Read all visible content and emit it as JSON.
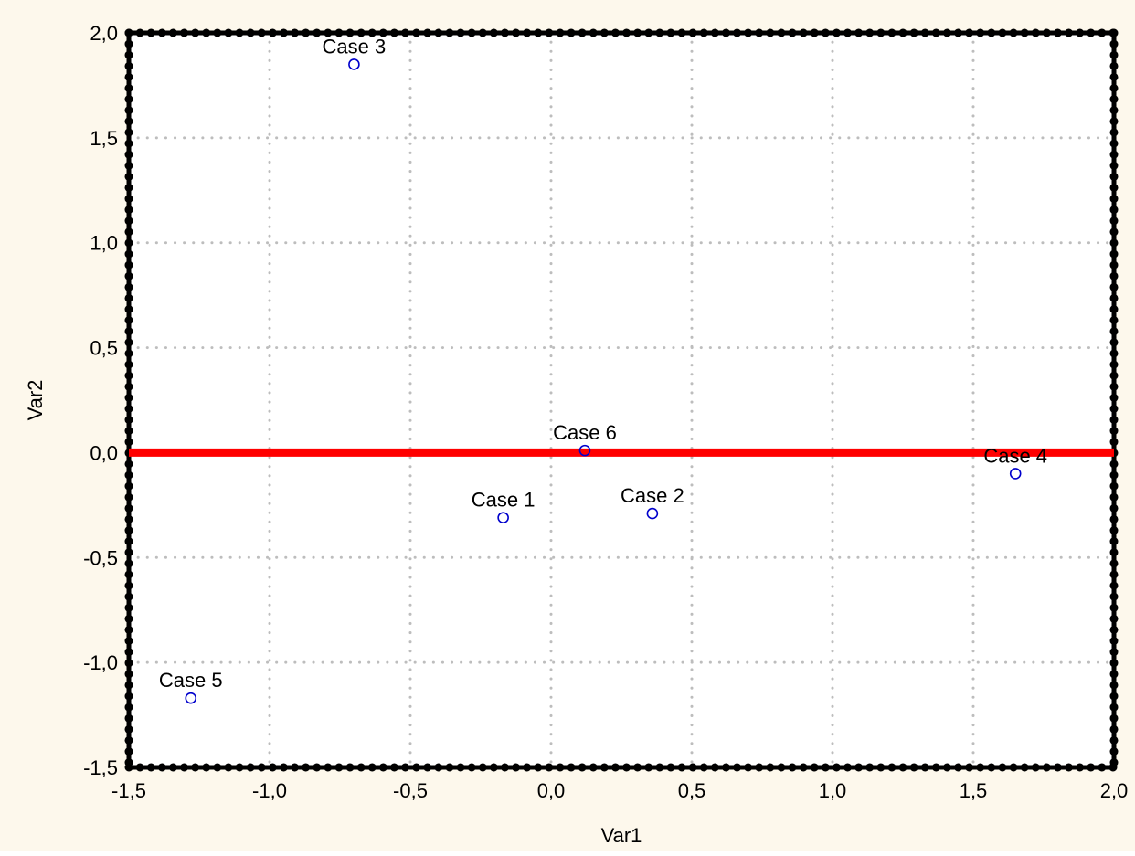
{
  "chart_data": {
    "type": "scatter",
    "title": "",
    "xlabel": "Var1",
    "ylabel": "Var2",
    "xlim": [
      -1.5,
      2.0
    ],
    "ylim": [
      -1.5,
      2.0
    ],
    "x_ticks": [
      -1.5,
      -1.0,
      -0.5,
      0.0,
      0.5,
      1.0,
      1.5,
      2.0
    ],
    "y_ticks": [
      -1.5,
      -1.0,
      -0.5,
      0.0,
      0.5,
      1.0,
      1.5,
      2.0
    ],
    "x_tick_labels": [
      "-1,5",
      "-1,0",
      "-0,5",
      "0,0",
      "0,5",
      "1,0",
      "1,5",
      "2,0"
    ],
    "y_tick_labels": [
      "-1,5",
      "-1,0",
      "-0,5",
      "0,0",
      "0,5",
      "1,0",
      "1,5",
      "2,0"
    ],
    "grid": true,
    "reference_line": {
      "axis": "y",
      "value": 0.0,
      "color": "#ff0000"
    },
    "points": [
      {
        "label": "Case 1",
        "x": -0.17,
        "y": -0.31
      },
      {
        "label": "Case 2",
        "x": 0.36,
        "y": -0.29
      },
      {
        "label": "Case 3",
        "x": -0.7,
        "y": 1.85
      },
      {
        "label": "Case 4",
        "x": 1.65,
        "y": -0.1
      },
      {
        "label": "Case 5",
        "x": -1.28,
        "y": -1.17
      },
      {
        "label": "Case 6",
        "x": 0.12,
        "y": 0.01
      }
    ],
    "colors": {
      "background": "#fdf8ec",
      "plot_area": "#ffffff",
      "frame": "#000000",
      "grid": "#bdbdbd",
      "marker": "#0000cc",
      "text": "#000000"
    }
  }
}
